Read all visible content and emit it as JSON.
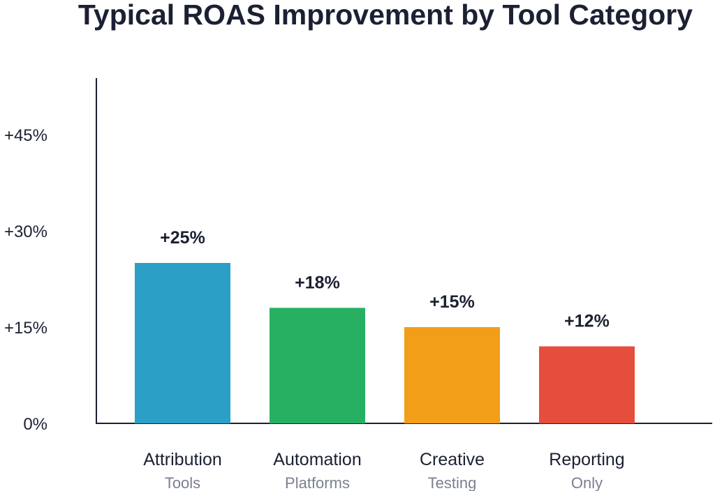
{
  "chart_data": {
    "type": "bar",
    "title": "Typical ROAS Improvement by Tool Category",
    "xlabel": "",
    "ylabel": "",
    "ylim": [
      0,
      45
    ],
    "yticks": [
      {
        "value": 0,
        "label": "0%"
      },
      {
        "value": 15,
        "label": "+15%"
      },
      {
        "value": 30,
        "label": "+30%"
      },
      {
        "value": 45,
        "label": "+45%"
      }
    ],
    "grid": false,
    "legend": "none",
    "categories": [
      {
        "line1": "Attribution",
        "line2": "Tools"
      },
      {
        "line1": "Automation",
        "line2": "Platforms"
      },
      {
        "line1": "Creative",
        "line2": "Testing"
      },
      {
        "line1": "Reporting",
        "line2": "Only"
      }
    ],
    "values": [
      25,
      18,
      15,
      12
    ],
    "value_labels": [
      "+25%",
      "+18%",
      "+15%",
      "+12%"
    ],
    "colors": [
      "#2b9fc6",
      "#28b062",
      "#f29e18",
      "#e54e3c"
    ]
  }
}
